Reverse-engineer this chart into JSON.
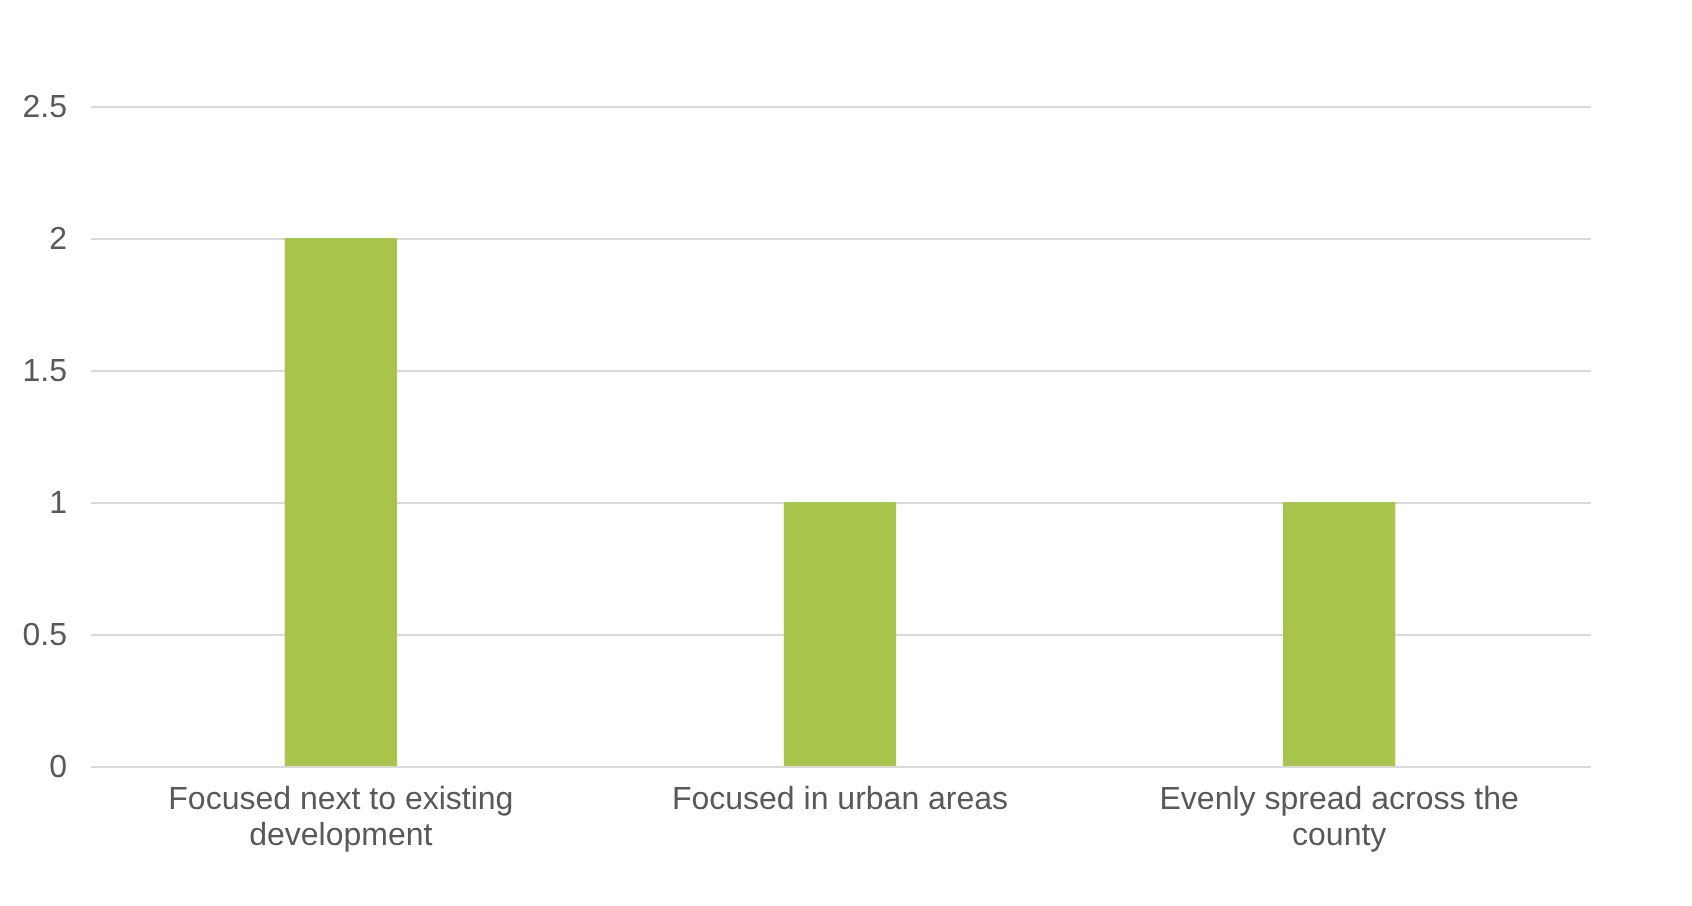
{
  "chart_data": {
    "type": "bar",
    "categories": [
      "Focused next to existing development",
      "Focused in urban areas",
      "Evenly spread across the county"
    ],
    "values": [
      2,
      1,
      1
    ],
    "color": "#a9c44b",
    "ylim": [
      0,
      2.5
    ],
    "yticks": [
      0,
      0.5,
      1,
      1.5,
      2,
      2.5
    ],
    "grid": "y"
  }
}
